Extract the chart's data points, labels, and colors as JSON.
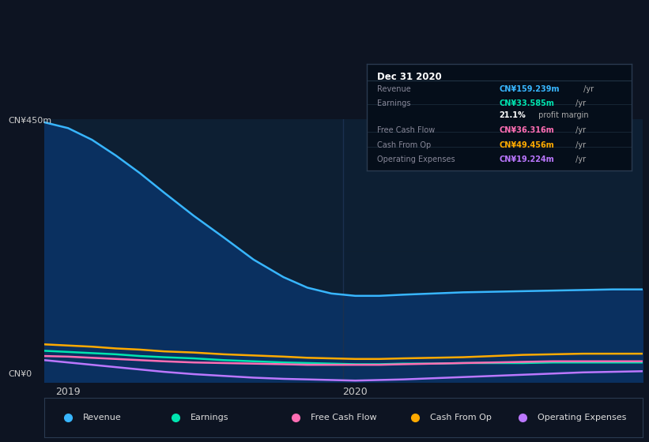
{
  "bg_color": "#0d1422",
  "chart_bg": "#0d1f33",
  "tooltip": {
    "title": "Dec 31 2020",
    "title_color": "#ffffff",
    "bg": "#050e1a",
    "border": "#2a3a50",
    "rows": [
      {
        "label": "Revenue",
        "value": "CN¥159.239m",
        "suffix": " /yr",
        "value_color": "#38b6ff",
        "label_color": "#888899"
      },
      {
        "label": "Earnings",
        "value": "CN¥33.585m",
        "suffix": " /yr",
        "value_color": "#00e5b0",
        "label_color": "#888899"
      },
      {
        "label": "",
        "value": "21.1%",
        "suffix": " profit margin",
        "value_color": "#ffffff",
        "label_color": "#888899"
      },
      {
        "label": "Free Cash Flow",
        "value": "CN¥36.316m",
        "suffix": " /yr",
        "value_color": "#ff6eb4",
        "label_color": "#888899"
      },
      {
        "label": "Cash From Op",
        "value": "CN¥49.456m",
        "suffix": " /yr",
        "value_color": "#ffaa00",
        "label_color": "#888899"
      },
      {
        "label": "Operating Expenses",
        "value": "CN¥19.224m",
        "suffix": " /yr",
        "value_color": "#bb77ff",
        "label_color": "#888899"
      }
    ]
  },
  "ylabel_top": "CN¥450m",
  "ylabel_bottom": "CN¥0",
  "xtick_positions": [
    0.04,
    0.52
  ],
  "xtick_labels": [
    "2019",
    "2020"
  ],
  "ylim": [
    0,
    450
  ],
  "series": {
    "Revenue": {
      "color": "#38b6ff",
      "fill_color": "#0a3060",
      "x": [
        0.0,
        0.04,
        0.08,
        0.12,
        0.16,
        0.2,
        0.25,
        0.3,
        0.35,
        0.4,
        0.44,
        0.48,
        0.52,
        0.56,
        0.6,
        0.65,
        0.7,
        0.75,
        0.8,
        0.85,
        0.9,
        0.95,
        1.0
      ],
      "y": [
        445,
        435,
        415,
        388,
        358,
        325,
        285,
        248,
        210,
        180,
        162,
        152,
        148,
        148,
        150,
        152,
        154,
        155,
        156,
        157,
        158,
        159,
        159
      ]
    },
    "CashFromOp": {
      "color": "#ffaa00",
      "fill_color": "#3a2800",
      "x": [
        0.0,
        0.04,
        0.08,
        0.12,
        0.16,
        0.2,
        0.25,
        0.3,
        0.35,
        0.4,
        0.44,
        0.48,
        0.52,
        0.56,
        0.6,
        0.65,
        0.7,
        0.75,
        0.8,
        0.85,
        0.9,
        0.95,
        1.0
      ],
      "y": [
        65,
        63,
        61,
        58,
        56,
        53,
        51,
        48,
        46,
        44,
        42,
        41,
        40,
        40,
        41,
        42,
        43,
        45,
        47,
        48,
        49,
        49,
        49
      ]
    },
    "Earnings": {
      "color": "#00e5b0",
      "fill_color": "#003322",
      "x": [
        0.0,
        0.04,
        0.08,
        0.12,
        0.16,
        0.2,
        0.25,
        0.3,
        0.35,
        0.4,
        0.44,
        0.48,
        0.52,
        0.56,
        0.6,
        0.65,
        0.7,
        0.75,
        0.8,
        0.85,
        0.9,
        0.95,
        1.0
      ],
      "y": [
        54,
        52,
        50,
        48,
        45,
        43,
        41,
        38,
        36,
        34,
        33,
        32,
        31,
        31,
        32,
        32,
        33,
        33,
        33,
        34,
        34,
        34,
        34
      ]
    },
    "FreeCashFlow": {
      "color": "#ff6eb4",
      "fill_color": "#3a0022",
      "x": [
        0.0,
        0.04,
        0.08,
        0.12,
        0.16,
        0.2,
        0.25,
        0.3,
        0.35,
        0.4,
        0.44,
        0.48,
        0.52,
        0.56,
        0.6,
        0.65,
        0.7,
        0.75,
        0.8,
        0.85,
        0.9,
        0.95,
        1.0
      ],
      "y": [
        45,
        44,
        42,
        40,
        38,
        36,
        34,
        33,
        32,
        31,
        30,
        30,
        30,
        30,
        31,
        32,
        33,
        34,
        35,
        36,
        36,
        36,
        36
      ]
    },
    "OperatingExpenses": {
      "color": "#bb77ff",
      "fill_color": "#220044",
      "x": [
        0.0,
        0.04,
        0.08,
        0.12,
        0.16,
        0.2,
        0.25,
        0.3,
        0.35,
        0.4,
        0.44,
        0.48,
        0.52,
        0.56,
        0.6,
        0.65,
        0.7,
        0.75,
        0.8,
        0.85,
        0.9,
        0.95,
        1.0
      ],
      "y": [
        38,
        34,
        30,
        26,
        22,
        18,
        14,
        11,
        8,
        6,
        5,
        4,
        3,
        4,
        5,
        7,
        9,
        11,
        13,
        15,
        17,
        18,
        19
      ]
    }
  },
  "series_fill_order": [
    "OperatingExpenses",
    "FreeCashFlow",
    "Earnings",
    "CashFromOp",
    "Revenue"
  ],
  "series_line_order": [
    "Revenue",
    "CashFromOp",
    "Earnings",
    "FreeCashFlow",
    "OperatingExpenses"
  ],
  "legend_items": [
    {
      "label": "Revenue",
      "color": "#38b6ff"
    },
    {
      "label": "Earnings",
      "color": "#00e5b0"
    },
    {
      "label": "Free Cash Flow",
      "color": "#ff6eb4"
    },
    {
      "label": "Cash From Op",
      "color": "#ffaa00"
    },
    {
      "label": "Operating Expenses",
      "color": "#bb77ff"
    }
  ]
}
